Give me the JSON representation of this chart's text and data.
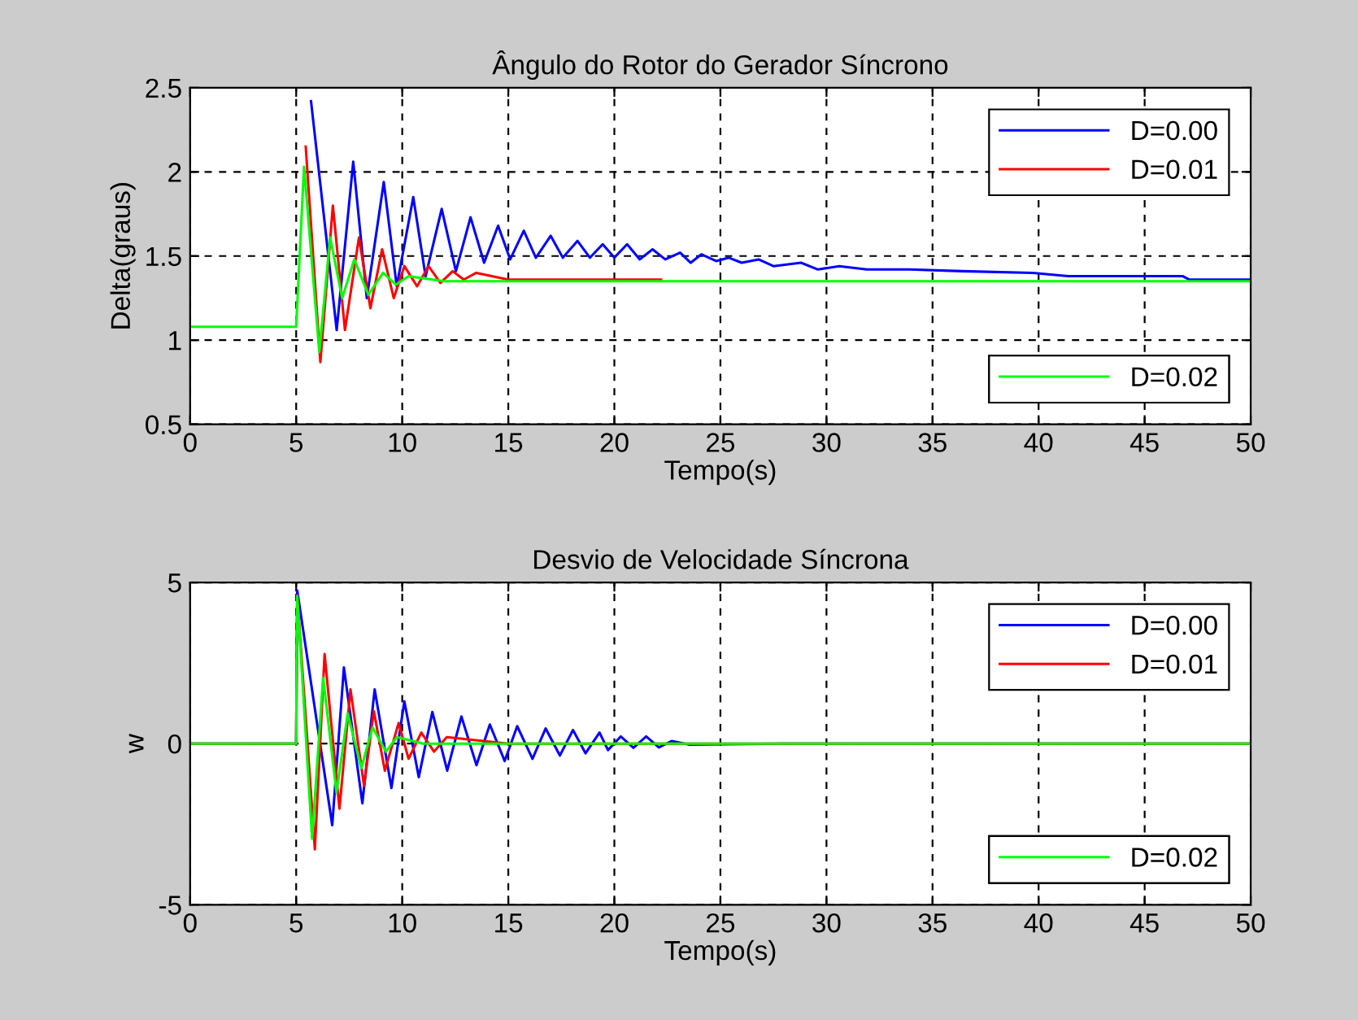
{
  "chart_data": [
    {
      "type": "line",
      "title": "Ângulo do Rotor do Gerador Síncrono",
      "xlabel": "Tempo(s)",
      "ylabel": "Delta(graus)",
      "xlim": [
        0,
        50
      ],
      "xticks": [
        0,
        5,
        10,
        15,
        20,
        25,
        30,
        35,
        40,
        45,
        50
      ],
      "ylim": [
        0.5,
        2.5
      ],
      "yticks": [
        0.5,
        1,
        1.5,
        2,
        2.5
      ],
      "grid": true,
      "legend": "right",
      "line_style": "solid",
      "series": [
        {
          "name": "D=0.00",
          "color": "#0000ff",
          "x": [
            5.7,
            6.91,
            7.69,
            8.33,
            9.13,
            9.74,
            10.52,
            11.1,
            11.86,
            12.53,
            13.22,
            13.86,
            14.52,
            15.09,
            15.73,
            16.3,
            17.0,
            17.57,
            18.26,
            18.85,
            19.45,
            20.0,
            20.6,
            21.2,
            21.8,
            22.4,
            23.1,
            23.6,
            24.1,
            24.8,
            25.4,
            26.0,
            26.8,
            27.5,
            28.8,
            29.6,
            30.6,
            31.9,
            33.9,
            36.4,
            39.7,
            41.4,
            46.8,
            47.1,
            50
          ],
          "values": [
            2.42,
            1.06,
            2.06,
            1.25,
            1.94,
            1.32,
            1.85,
            1.38,
            1.78,
            1.41,
            1.73,
            1.46,
            1.68,
            1.48,
            1.65,
            1.49,
            1.62,
            1.49,
            1.59,
            1.49,
            1.57,
            1.49,
            1.57,
            1.48,
            1.54,
            1.48,
            1.52,
            1.46,
            1.51,
            1.47,
            1.49,
            1.46,
            1.48,
            1.44,
            1.46,
            1.42,
            1.44,
            1.42,
            1.42,
            1.41,
            1.4,
            1.38,
            1.38,
            1.36,
            1.36
          ]
        },
        {
          "name": "D=0.01",
          "color": "#ff0000",
          "x": [
            5.45,
            6.14,
            6.73,
            7.3,
            7.96,
            8.5,
            9.05,
            9.6,
            10.1,
            10.7,
            11.24,
            11.8,
            12.38,
            12.9,
            13.49,
            15,
            22.2
          ],
          "values": [
            2.15,
            0.87,
            1.8,
            1.06,
            1.61,
            1.19,
            1.54,
            1.25,
            1.44,
            1.32,
            1.44,
            1.34,
            1.41,
            1.36,
            1.4,
            1.36,
            1.36
          ]
        },
        {
          "name": "D=0.02",
          "color": "#00ff00",
          "x": [
            0,
            5,
            5.37,
            6.09,
            6.6,
            7.17,
            7.74,
            8.4,
            9.1,
            9.7,
            10.3,
            12,
            50
          ],
          "values": [
            1.08,
            1.08,
            2.03,
            0.93,
            1.61,
            1.25,
            1.48,
            1.27,
            1.4,
            1.33,
            1.38,
            1.35,
            1.35
          ]
        }
      ]
    },
    {
      "type": "line",
      "title": "Desvio de Velocidade Síncrona",
      "xlabel": "Tempo(s)",
      "ylabel": "w",
      "xlim": [
        0,
        50
      ],
      "xticks": [
        0,
        5,
        10,
        15,
        20,
        25,
        30,
        35,
        40,
        45,
        50
      ],
      "ylim": [
        -5,
        5
      ],
      "yticks": [
        -5,
        0,
        5
      ],
      "grid": true,
      "legend": "right",
      "line_style": "solid",
      "series": [
        {
          "name": "D=0.00",
          "color": "#0000ff",
          "x": [
            0,
            5,
            5.05,
            6.7,
            7.25,
            8.12,
            8.7,
            9.49,
            10.1,
            10.78,
            11.42,
            12.12,
            12.79,
            13.5,
            14.13,
            14.83,
            15.42,
            16.14,
            16.76,
            17.43,
            18.05,
            18.64,
            19.3,
            19.7,
            20.3,
            20.9,
            21.5,
            22.1,
            22.7,
            23.5,
            28,
            50
          ],
          "values": [
            0,
            0,
            4.75,
            -2.53,
            2.36,
            -1.85,
            1.68,
            -1.38,
            1.31,
            -1.04,
            0.98,
            -0.84,
            0.84,
            -0.67,
            0.59,
            -0.54,
            0.54,
            -0.47,
            0.47,
            -0.37,
            0.42,
            -0.3,
            0.34,
            -0.2,
            0.22,
            -0.13,
            0.22,
            -0.12,
            0.08,
            -0.03,
            0,
            0
          ]
        },
        {
          "name": "D=0.01",
          "color": "#ff0000",
          "x": [
            0,
            5,
            5.05,
            5.88,
            6.34,
            7.04,
            7.56,
            8.2,
            8.66,
            9.18,
            9.83,
            10.3,
            10.9,
            11.5,
            12.1,
            15,
            50
          ],
          "values": [
            0,
            0,
            4.6,
            -3.28,
            2.78,
            -2.02,
            1.68,
            -1.31,
            1.01,
            -0.84,
            0.64,
            -0.47,
            0.34,
            -0.25,
            0.2,
            0,
            0
          ]
        },
        {
          "name": "D=0.02",
          "color": "#00ff00",
          "x": [
            0,
            5,
            5.05,
            5.75,
            6.27,
            6.9,
            7.43,
            8.07,
            8.6,
            9.23,
            9.75,
            11,
            50
          ],
          "values": [
            0,
            0,
            4.58,
            -2.95,
            2.05,
            -1.52,
            0.93,
            -0.76,
            0.5,
            -0.25,
            0.2,
            0,
            0
          ]
        }
      ]
    }
  ]
}
